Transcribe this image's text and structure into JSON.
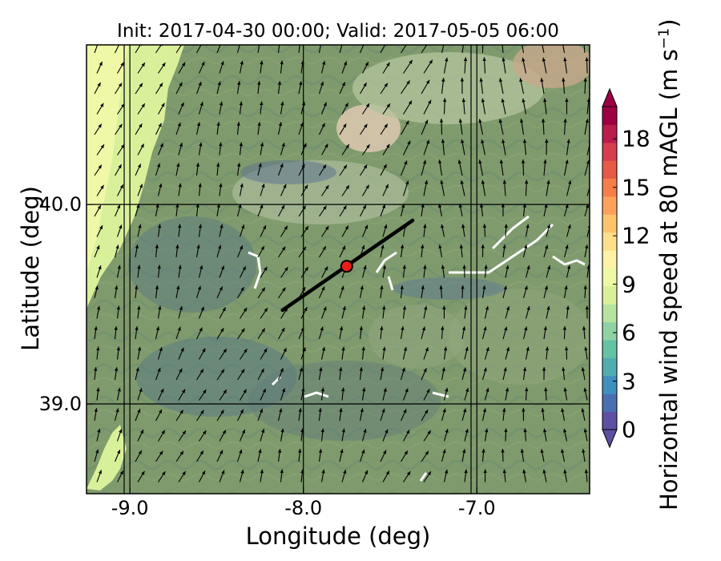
{
  "title": "Init: 2017-04-30 00:00; Valid: 2017-05-05 06:00",
  "xlabel": "Longitude (deg)",
  "ylabel": "Latitude (deg)",
  "colorbar": {
    "label": "Horizontal wind speed at 80 mAGL (m s",
    "label_sup": "−1",
    "label_close": ")",
    "ticks": [
      "0",
      "3",
      "6",
      "9",
      "12",
      "15",
      "18"
    ],
    "tick_values": [
      0,
      3,
      6,
      9,
      12,
      15,
      18
    ],
    "range": [
      0,
      20
    ],
    "extend": "both",
    "colors": [
      "#5e4fa2",
      "#4a6fb1",
      "#3f8fbf",
      "#4fadb0",
      "#66c2a5",
      "#8fd3a4",
      "#b7e3a0",
      "#d9f09b",
      "#eef8a6",
      "#fff2a8",
      "#fee08b",
      "#fdc46c",
      "#fca25d",
      "#f67e4b",
      "#e55b48",
      "#d53e4f",
      "#b81d4b",
      "#9e0142"
    ]
  },
  "map": {
    "x_ticks": [
      "-9.0",
      "-8.0",
      "-7.0"
    ],
    "x_tick_values": [
      -9.0,
      -8.0,
      -7.0
    ],
    "y_ticks": [
      "40.0",
      "39.0"
    ],
    "y_tick_values": [
      40.0,
      39.0
    ],
    "lon_range": [
      -9.25,
      -6.35
    ],
    "lat_range": [
      38.55,
      40.8
    ],
    "gridlines": true,
    "site_marker": {
      "lon": -7.75,
      "lat": 39.69,
      "color": "#e8201a"
    },
    "cross_section_line": {
      "start": [
        -8.12,
        39.47
      ],
      "end": [
        -7.37,
        39.92
      ]
    },
    "ocean_color": "#d9f09b",
    "land_color": "#7f9a6c"
  }
}
